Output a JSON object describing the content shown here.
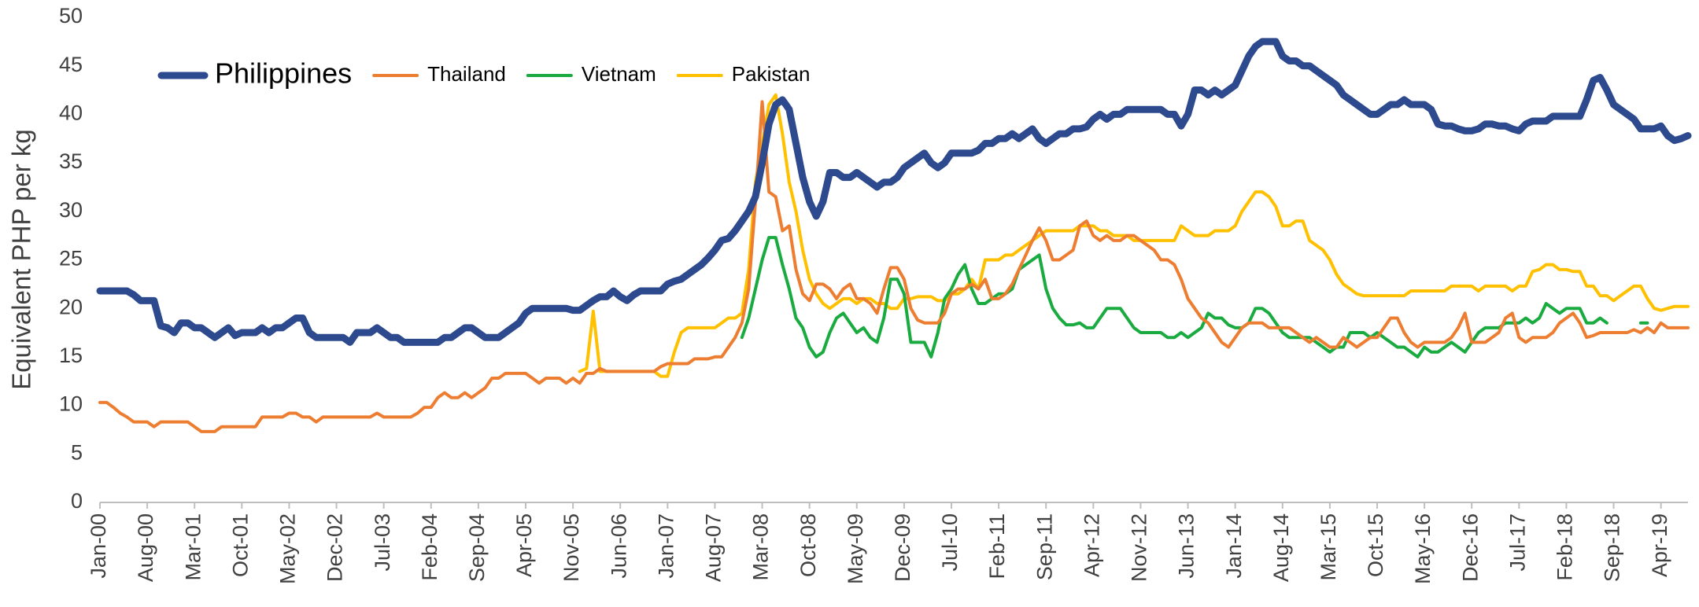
{
  "chart_data": {
    "type": "line",
    "ylabel": "Equivalent PHP per kg",
    "legend": "top-left",
    "ylim": [
      0,
      50
    ],
    "yticks": [
      0,
      5,
      10,
      15,
      20,
      25,
      30,
      35,
      40,
      45,
      50
    ],
    "categories": [
      "Jan-00",
      null,
      null,
      null,
      null,
      null,
      null,
      "Aug-00",
      null,
      null,
      null,
      null,
      null,
      null,
      "Mar-01",
      null,
      null,
      null,
      null,
      null,
      null,
      "Oct-01",
      null,
      null,
      null,
      null,
      null,
      null,
      "May-02",
      null,
      null,
      null,
      null,
      null,
      null,
      "Dec-02",
      null,
      null,
      null,
      null,
      null,
      null,
      "Jul-03",
      null,
      null,
      null,
      null,
      null,
      null,
      "Feb-04",
      null,
      null,
      null,
      null,
      null,
      null,
      "Sep-04",
      null,
      null,
      null,
      null,
      null,
      null,
      "Apr-05",
      null,
      null,
      null,
      null,
      null,
      null,
      "Nov-05",
      null,
      null,
      null,
      null,
      null,
      null,
      "Jun-06",
      null,
      null,
      null,
      null,
      null,
      null,
      "Jan-07",
      null,
      null,
      null,
      null,
      null,
      null,
      "Aug-07",
      null,
      null,
      null,
      null,
      null,
      null,
      "Mar-08",
      null,
      null,
      null,
      null,
      null,
      null,
      "Oct-08",
      null,
      null,
      null,
      null,
      null,
      null,
      "May-09",
      null,
      null,
      null,
      null,
      null,
      null,
      "Dec-09",
      null,
      null,
      null,
      null,
      null,
      null,
      "Jul-10",
      null,
      null,
      null,
      null,
      null,
      null,
      "Feb-11",
      null,
      null,
      null,
      null,
      null,
      null,
      "Sep-11",
      null,
      null,
      null,
      null,
      null,
      null,
      "Apr-12",
      null,
      null,
      null,
      null,
      null,
      null,
      "Nov-12",
      null,
      null,
      null,
      null,
      null,
      null,
      "Jun-13",
      null,
      null,
      null,
      null,
      null,
      null,
      "Jan-14",
      null,
      null,
      null,
      null,
      null,
      null,
      "Aug-14",
      null,
      null,
      null,
      null,
      null,
      null,
      "Mar-15",
      null,
      null,
      null,
      null,
      null,
      null,
      "Oct-15",
      null,
      null,
      null,
      null,
      null,
      null,
      "May-16",
      null,
      null,
      null,
      null,
      null,
      null,
      "Dec-16",
      null,
      null,
      null,
      null,
      null,
      null,
      "Jul-17",
      null,
      null,
      null,
      null,
      null,
      null,
      "Feb-18",
      null,
      null,
      null,
      null,
      null,
      null,
      "Sep-18",
      null,
      null,
      null,
      null,
      null,
      null,
      "Apr-19",
      null,
      null,
      null,
      null
    ],
    "series": [
      {
        "name": "Philippines",
        "color": "#2e4a8e",
        "width": 9,
        "values": [
          21.8,
          21.8,
          21.8,
          21.8,
          21.8,
          21.4,
          20.8,
          20.8,
          20.8,
          18.2,
          18,
          17.5,
          18.5,
          18.5,
          18,
          18,
          17.5,
          17,
          17.5,
          18,
          17.2,
          17.5,
          17.5,
          17.5,
          18,
          17.5,
          18,
          18,
          18.5,
          19,
          19,
          17.5,
          17,
          17,
          17,
          17,
          17,
          16.5,
          17.5,
          17.5,
          17.5,
          18,
          17.5,
          17,
          17,
          16.5,
          16.5,
          16.5,
          16.5,
          16.5,
          16.5,
          17,
          17,
          17.5,
          18,
          18,
          17.5,
          17,
          17,
          17,
          17.5,
          18,
          18.5,
          19.5,
          20,
          20,
          20,
          20,
          20,
          20,
          19.8,
          19.8,
          20.3,
          20.8,
          21.2,
          21.2,
          21.8,
          21.2,
          20.8,
          21.4,
          21.8,
          21.8,
          21.8,
          21.8,
          22.5,
          22.8,
          23,
          23.5,
          24,
          24.5,
          25.2,
          26,
          27,
          27.2,
          28,
          29,
          30,
          31.5,
          35,
          39,
          41,
          41.5,
          40.5,
          37,
          33.5,
          31,
          29.5,
          31,
          34,
          34,
          33.5,
          33.5,
          34,
          33.5,
          33,
          32.5,
          33,
          33,
          33.5,
          34.5,
          35,
          35.5,
          36,
          35,
          34.5,
          35,
          36,
          36,
          36,
          36,
          36.3,
          37,
          37,
          37.5,
          37.5,
          38,
          37.5,
          38,
          38.5,
          37.5,
          37,
          37.5,
          38,
          38,
          38.5,
          38.5,
          38.7,
          39.5,
          40,
          39.5,
          40,
          40,
          40.5,
          40.5,
          40.5,
          40.5,
          40.5,
          40.5,
          40,
          40,
          38.8,
          40,
          42.5,
          42.5,
          42,
          42.5,
          42,
          42.5,
          43,
          44.5,
          46,
          47,
          47.5,
          47.5,
          47.5,
          46,
          45.5,
          45.5,
          45,
          45,
          44.5,
          44,
          43.5,
          43,
          42,
          41.5,
          41,
          40.5,
          40,
          40,
          40.5,
          41,
          41,
          41.5,
          41,
          41,
          41,
          40.5,
          39,
          38.8,
          38.8,
          38.5,
          38.3,
          38.3,
          38.5,
          39,
          39,
          38.8,
          38.8,
          38.5,
          38.3,
          39,
          39.3,
          39.3,
          39.3,
          39.8,
          39.8,
          39.8,
          39.8,
          39.8,
          41.5,
          43.5,
          43.8,
          42.5,
          41,
          40.5,
          40,
          39.5,
          38.5,
          38.5,
          38.5,
          38.8,
          37.8,
          37.3,
          37.5,
          37.8
        ]
      },
      {
        "name": "Thailand",
        "color": "#ed7d31",
        "width": 4,
        "values": [
          10.3,
          10.3,
          9.8,
          9.2,
          8.8,
          8.3,
          8.3,
          8.3,
          7.8,
          8.3,
          8.3,
          8.3,
          8.3,
          8.3,
          7.8,
          7.3,
          7.3,
          7.3,
          7.8,
          7.8,
          7.8,
          7.8,
          7.8,
          7.8,
          8.8,
          8.8,
          8.8,
          8.8,
          9.2,
          9.2,
          8.8,
          8.8,
          8.3,
          8.8,
          8.8,
          8.8,
          8.8,
          8.8,
          8.8,
          8.8,
          8.8,
          9.2,
          8.8,
          8.8,
          8.8,
          8.8,
          8.8,
          9.2,
          9.8,
          9.8,
          10.8,
          11.3,
          10.8,
          10.8,
          11.3,
          10.8,
          11.3,
          11.8,
          12.8,
          12.8,
          13.3,
          13.3,
          13.3,
          13.3,
          12.8,
          12.3,
          12.8,
          12.8,
          12.8,
          12.3,
          12.8,
          12.3,
          13.3,
          13.3,
          13.8,
          13.5,
          13.5,
          13.5,
          13.5,
          13.5,
          13.5,
          13.5,
          13.5,
          14,
          14.3,
          14.3,
          14.3,
          14.3,
          14.8,
          14.8,
          14.8,
          15,
          15,
          16,
          17,
          18.5,
          22,
          31,
          41.3,
          32,
          31.5,
          28,
          28.5,
          24,
          21.5,
          20.8,
          22.5,
          22.5,
          22,
          21,
          22,
          22.5,
          21,
          21,
          20.5,
          19.5,
          22,
          24.2,
          24.2,
          23,
          20,
          18.8,
          18.5,
          18.5,
          18.5,
          19.5,
          21.5,
          22,
          22,
          22.5,
          22,
          23,
          21,
          21,
          21.5,
          22.5,
          24,
          25.5,
          27,
          28.3,
          27,
          25,
          25,
          25.5,
          26,
          28.5,
          29,
          27.5,
          27,
          27.5,
          27,
          27,
          27.5,
          27.5,
          27,
          26.5,
          26,
          25,
          25,
          24.5,
          23,
          21,
          20,
          19,
          18.5,
          17.5,
          16.5,
          16,
          17,
          18,
          18.5,
          18.5,
          18.5,
          18,
          18,
          18,
          18,
          17.5,
          17,
          16.5,
          17,
          16.5,
          16,
          16,
          17,
          16.5,
          16,
          16.5,
          17,
          17,
          18,
          19,
          19,
          17.5,
          16.5,
          16,
          16.5,
          16.5,
          16.5,
          16.5,
          17,
          18,
          19.5,
          16.5,
          16.5,
          16.5,
          17,
          17.5,
          19,
          19.5,
          17,
          16.5,
          17,
          17,
          17,
          17.5,
          18.5,
          19,
          19.5,
          18.5,
          17,
          17.2,
          17.5,
          17.5,
          17.5,
          17.5,
          17.5,
          17.8,
          17.5,
          18,
          17.5,
          18.5,
          18,
          18,
          18,
          18
        ]
      },
      {
        "name": "Vietnam",
        "color": "#1aab40",
        "width": 4,
        "values": [
          null,
          null,
          null,
          null,
          null,
          null,
          null,
          null,
          null,
          null,
          null,
          null,
          null,
          null,
          null,
          null,
          null,
          null,
          null,
          null,
          null,
          null,
          null,
          null,
          null,
          null,
          null,
          null,
          null,
          null,
          null,
          null,
          null,
          null,
          null,
          null,
          null,
          null,
          null,
          null,
          null,
          null,
          null,
          null,
          null,
          null,
          null,
          null,
          null,
          null,
          null,
          null,
          null,
          null,
          null,
          null,
          null,
          null,
          null,
          null,
          null,
          null,
          null,
          null,
          null,
          null,
          null,
          null,
          null,
          null,
          null,
          null,
          null,
          null,
          null,
          null,
          null,
          null,
          null,
          null,
          null,
          null,
          null,
          null,
          null,
          null,
          null,
          null,
          null,
          null,
          null,
          null,
          null,
          null,
          null,
          17,
          19,
          22,
          25,
          27.3,
          27.3,
          24.5,
          22,
          19,
          18,
          16,
          15,
          15.5,
          17.5,
          19,
          19.5,
          18.5,
          17.5,
          18,
          17,
          16.5,
          19,
          23,
          23,
          21.5,
          16.5,
          16.5,
          16.5,
          15,
          17.5,
          21,
          22,
          23.5,
          24.5,
          22,
          20.5,
          20.5,
          21,
          21.5,
          21.5,
          22,
          24,
          24.5,
          25,
          25.5,
          22,
          20,
          19,
          18.3,
          18.3,
          18.5,
          18,
          18,
          19,
          20,
          20,
          20,
          19,
          18,
          17.5,
          17.5,
          17.5,
          17.5,
          17,
          17,
          17.5,
          17,
          17.5,
          18,
          19.5,
          19,
          19,
          18.3,
          18,
          18,
          18.5,
          20,
          20,
          19.5,
          18.5,
          17.5,
          17,
          17,
          17,
          17,
          16.5,
          16,
          15.5,
          16,
          16,
          17.5,
          17.5,
          17.5,
          17,
          17.5,
          17,
          16.5,
          16,
          16,
          15.5,
          15,
          16,
          15.5,
          15.5,
          16,
          16.5,
          16,
          15.5,
          16.5,
          17.5,
          18,
          18,
          18,
          18.5,
          18.5,
          18.5,
          19,
          18.5,
          19,
          20.5,
          20,
          19.5,
          20,
          20,
          20,
          18.5,
          18.5,
          19,
          18.5,
          null,
          null,
          null,
          null,
          18.5,
          18.5,
          null,
          null,
          null,
          null,
          null,
          null
        ]
      },
      {
        "name": "Pakistan",
        "color": "#ffc000",
        "width": 4,
        "values": [
          null,
          null,
          null,
          null,
          null,
          null,
          null,
          null,
          null,
          null,
          null,
          null,
          null,
          null,
          null,
          null,
          null,
          null,
          null,
          null,
          null,
          null,
          null,
          null,
          null,
          null,
          null,
          null,
          null,
          null,
          null,
          null,
          null,
          null,
          null,
          null,
          null,
          null,
          null,
          null,
          null,
          null,
          null,
          null,
          null,
          null,
          null,
          null,
          null,
          null,
          null,
          null,
          null,
          null,
          null,
          null,
          null,
          null,
          null,
          null,
          null,
          null,
          null,
          null,
          null,
          null,
          null,
          null,
          null,
          null,
          null,
          13.5,
          13.8,
          19.7,
          13.5,
          13.5,
          13.5,
          13.5,
          13.5,
          13.5,
          13.5,
          13.5,
          13.5,
          13,
          13,
          15.5,
          17.5,
          18,
          18,
          18,
          18,
          18,
          18.5,
          19,
          19,
          19.5,
          24,
          33,
          37,
          41,
          42,
          38,
          33,
          30,
          26,
          23,
          21.5,
          20.5,
          20,
          20.5,
          21,
          21,
          20.5,
          21,
          21,
          20.5,
          20.5,
          20,
          20,
          21,
          21,
          21.2,
          21.2,
          21.2,
          20.8,
          20.8,
          21.5,
          21.5,
          22,
          23,
          22,
          25,
          25,
          25,
          25.5,
          25.5,
          26,
          26.5,
          27,
          27.5,
          28,
          28,
          28,
          28,
          28,
          28.5,
          28.5,
          28.5,
          28,
          28,
          27.5,
          27.5,
          27.5,
          27,
          27,
          27,
          27,
          27,
          27,
          27,
          28.5,
          28,
          27.5,
          27.5,
          27.5,
          28,
          28,
          28,
          28.5,
          30,
          31,
          32,
          32,
          31.5,
          30.5,
          28.5,
          28.5,
          29,
          29,
          27,
          26.5,
          26,
          25,
          23.5,
          22.5,
          22,
          21.5,
          21.3,
          21.3,
          21.3,
          21.3,
          21.3,
          21.3,
          21.3,
          21.8,
          21.8,
          21.8,
          21.8,
          21.8,
          21.8,
          22.3,
          22.3,
          22.3,
          22.3,
          21.8,
          22.3,
          22.3,
          22.3,
          22.3,
          21.8,
          22.3,
          22.3,
          23.8,
          24,
          24.5,
          24.5,
          24,
          24,
          23.8,
          23.8,
          22.3,
          22.3,
          21.3,
          21.3,
          20.8,
          21.3,
          21.8,
          22.3,
          22.3,
          21,
          20,
          19.8,
          20,
          20.2,
          20.2,
          20.2
        ]
      }
    ]
  }
}
